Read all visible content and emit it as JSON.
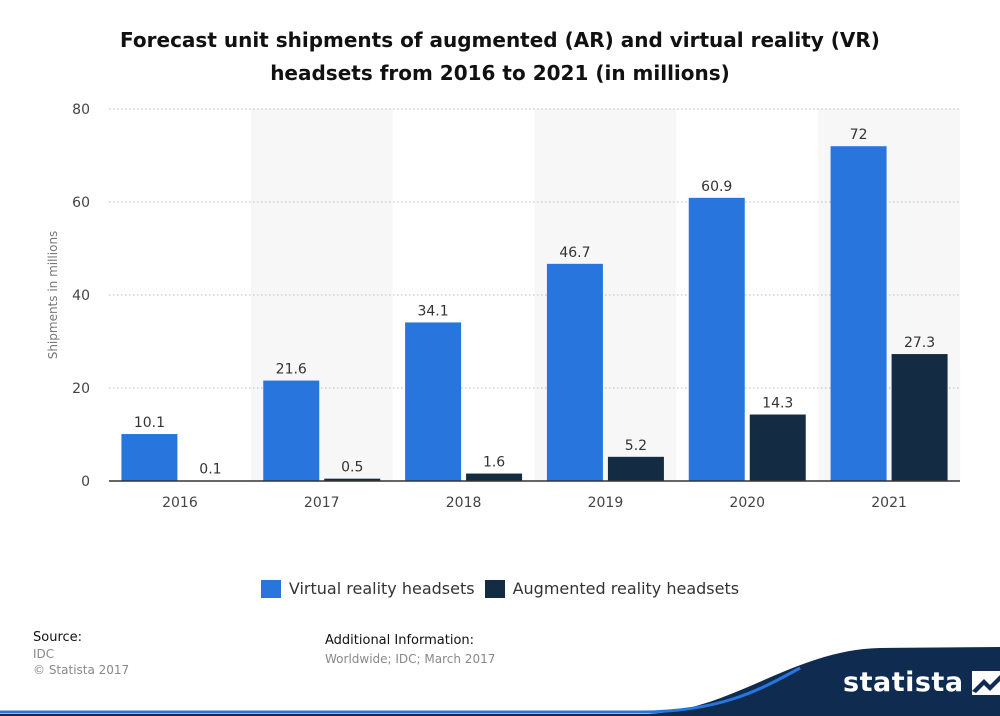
{
  "title": "Forecast unit shipments of augmented (AR) and virtual reality (VR)\nheadsets from 2016 to 2021 (in millions)",
  "chart_data": {
    "type": "bar",
    "title": "Forecast unit shipments of augmented (AR) and virtual reality (VR) headsets from 2016 to 2021 (in millions)",
    "xlabel": "",
    "ylabel": "Shipments in millions",
    "categories": [
      "2016",
      "2017",
      "2018",
      "2019",
      "2020",
      "2021"
    ],
    "series": [
      {
        "name": "Virtual reality headsets",
        "values": [
          10.1,
          21.6,
          34.1,
          46.7,
          60.9,
          72
        ],
        "labels": [
          "10.1",
          "21.6",
          "34.1",
          "46.7",
          "60.9",
          "72"
        ],
        "color": "#2876dd"
      },
      {
        "name": "Augmented reality headsets",
        "values": [
          0.1,
          0.5,
          1.6,
          5.2,
          14.3,
          27.3
        ],
        "labels": [
          "0.1",
          "0.5",
          "1.6",
          "5.2",
          "14.3",
          "27.3"
        ],
        "color": "#132b43"
      }
    ],
    "yticks": [
      "0",
      "20",
      "40",
      "60",
      "80"
    ],
    "ylim": [
      0,
      80
    ],
    "grid": true,
    "legend_position": "bottom"
  },
  "source": {
    "heading": "Source:",
    "lines": [
      "IDC",
      "© Statista 2017"
    ]
  },
  "additional": {
    "heading": "Additional Information:",
    "text": "Worldwide; IDC; March 2017"
  },
  "brand": {
    "name": "statista"
  },
  "colors": {
    "footer_wave": "#0f2b4f",
    "accent": "#2876dd"
  },
  "icons": {
    "brand_mark": "statista-logo-mark"
  }
}
